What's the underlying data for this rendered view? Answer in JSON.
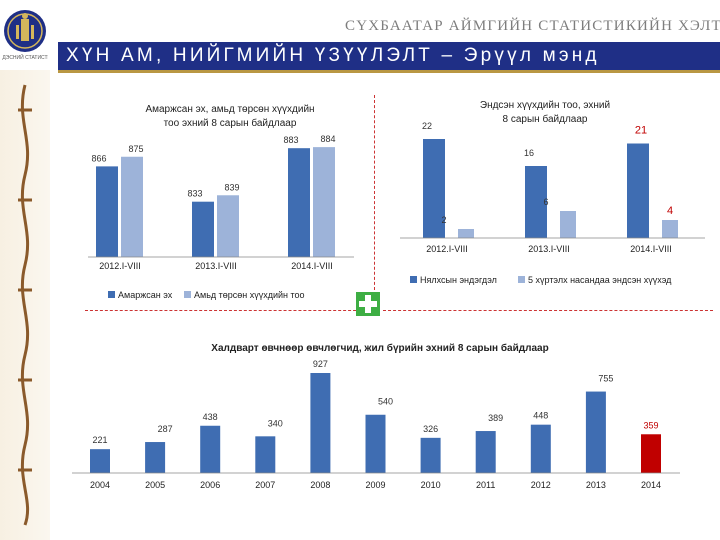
{
  "header": {
    "org_name": "СҮХБААТАР АЙМГИЙН СТАТИСТИКИЙН ХЭЛТЭС",
    "title": "ХҮН АМ, НИЙГМИЙН ҮЗҮҮЛЭЛТ – Эрүүл мэнд",
    "logo_text": "ҮНДЭСНИЙ СТАТИСТИК"
  },
  "colors": {
    "primary": "#3f6db2",
    "secondary": "#9db3d9",
    "highlight": "#c00000",
    "navy": "#1f2f86",
    "gold": "#b99743"
  },
  "chart_data": [
    {
      "id": "births",
      "type": "bar",
      "title": "Амаржсан эх, амьд төрсөн хүүхдийн тоо эхний 8 сарын байдлаар",
      "categories": [
        "2012.I-VIII",
        "2013.I-VIII",
        "2014.I-VIII"
      ],
      "series": [
        {
          "name": "Амаржсан эх",
          "values": [
            866,
            833,
            883
          ]
        },
        {
          "name": "Амьд төрсөн хүүхдийн тоо",
          "values": [
            875,
            839,
            884
          ]
        }
      ],
      "ylim": [
        800,
        900
      ]
    },
    {
      "id": "infant_deaths",
      "type": "bar",
      "title": "Эндсэн хүүхдийн тоо, эхний 8 сарын байдлаар",
      "categories": [
        "2012.I-VIII",
        "2013.I-VIII",
        "2014.I-VIII"
      ],
      "series": [
        {
          "name": "Нялхсын эндэгдэл",
          "values": [
            22,
            16,
            21
          ]
        },
        {
          "name": "5 хүртэлх насандаа эндсэн хүүхэд",
          "values": [
            2,
            6,
            4
          ]
        }
      ],
      "highlight_labels": [
        "21",
        "4"
      ],
      "ylim": [
        0,
        25
      ]
    },
    {
      "id": "infectious",
      "type": "bar",
      "title": "Халдварт өвчнөөр өвчлөгчид, жил бүрийн эхний 8 сарын байдлаар",
      "categories": [
        "2004",
        "2005",
        "2006",
        "2007",
        "2008",
        "2009",
        "2010",
        "2011",
        "2012",
        "2013",
        "2014"
      ],
      "values": [
        221,
        287,
        438,
        340,
        927,
        540,
        326,
        389,
        448,
        755,
        359
      ],
      "highlight_index": 10,
      "ylim": [
        0,
        950
      ]
    }
  ]
}
